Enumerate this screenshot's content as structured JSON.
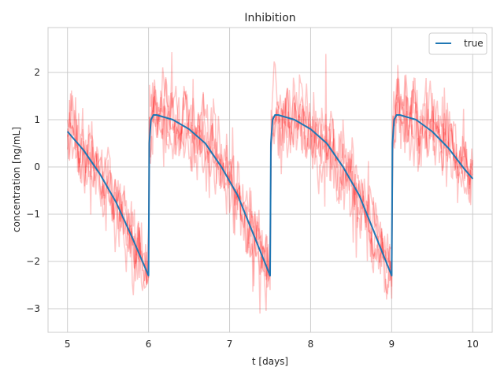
{
  "chart_data": {
    "type": "line",
    "title": "Inhibition",
    "xlabel": "t [days]",
    "ylabel": "concentration [ng/mL]",
    "xlim": [
      4.76,
      10.24
    ],
    "ylim": [
      -3.5,
      2.95
    ],
    "xticks": [
      5,
      6,
      7,
      8,
      9,
      10
    ],
    "yticks": [
      -3,
      -2,
      -1,
      0,
      1,
      2
    ],
    "grid": true,
    "legend": {
      "position": "top-right",
      "entries": [
        "true"
      ]
    },
    "series": [
      {
        "name": "true",
        "color": "#1f77b4",
        "x": [
          5.0,
          5.2,
          5.4,
          5.6,
          5.8,
          6.0,
          6.01,
          6.03,
          6.06,
          6.1,
          6.3,
          6.5,
          6.7,
          6.9,
          7.1,
          7.3,
          7.5,
          7.51,
          7.53,
          7.56,
          7.6,
          7.8,
          8.0,
          8.2,
          8.4,
          8.6,
          8.8,
          9.0,
          9.01,
          9.03,
          9.06,
          9.1,
          9.3,
          9.5,
          9.7,
          9.9,
          10.0
        ],
        "y": [
          0.75,
          0.35,
          -0.15,
          -0.75,
          -1.5,
          -2.3,
          0.5,
          1.0,
          1.1,
          1.1,
          1.0,
          0.8,
          0.5,
          0.0,
          -0.6,
          -1.45,
          -2.3,
          0.5,
          1.0,
          1.1,
          1.1,
          1.0,
          0.8,
          0.5,
          0.0,
          -0.6,
          -1.45,
          -2.3,
          0.5,
          1.0,
          1.1,
          1.1,
          1.0,
          0.75,
          0.4,
          -0.05,
          -0.25
        ]
      }
    ],
    "noise_traces": {
      "color": "#ff0000",
      "count": 5,
      "sigma": 0.35
    }
  }
}
